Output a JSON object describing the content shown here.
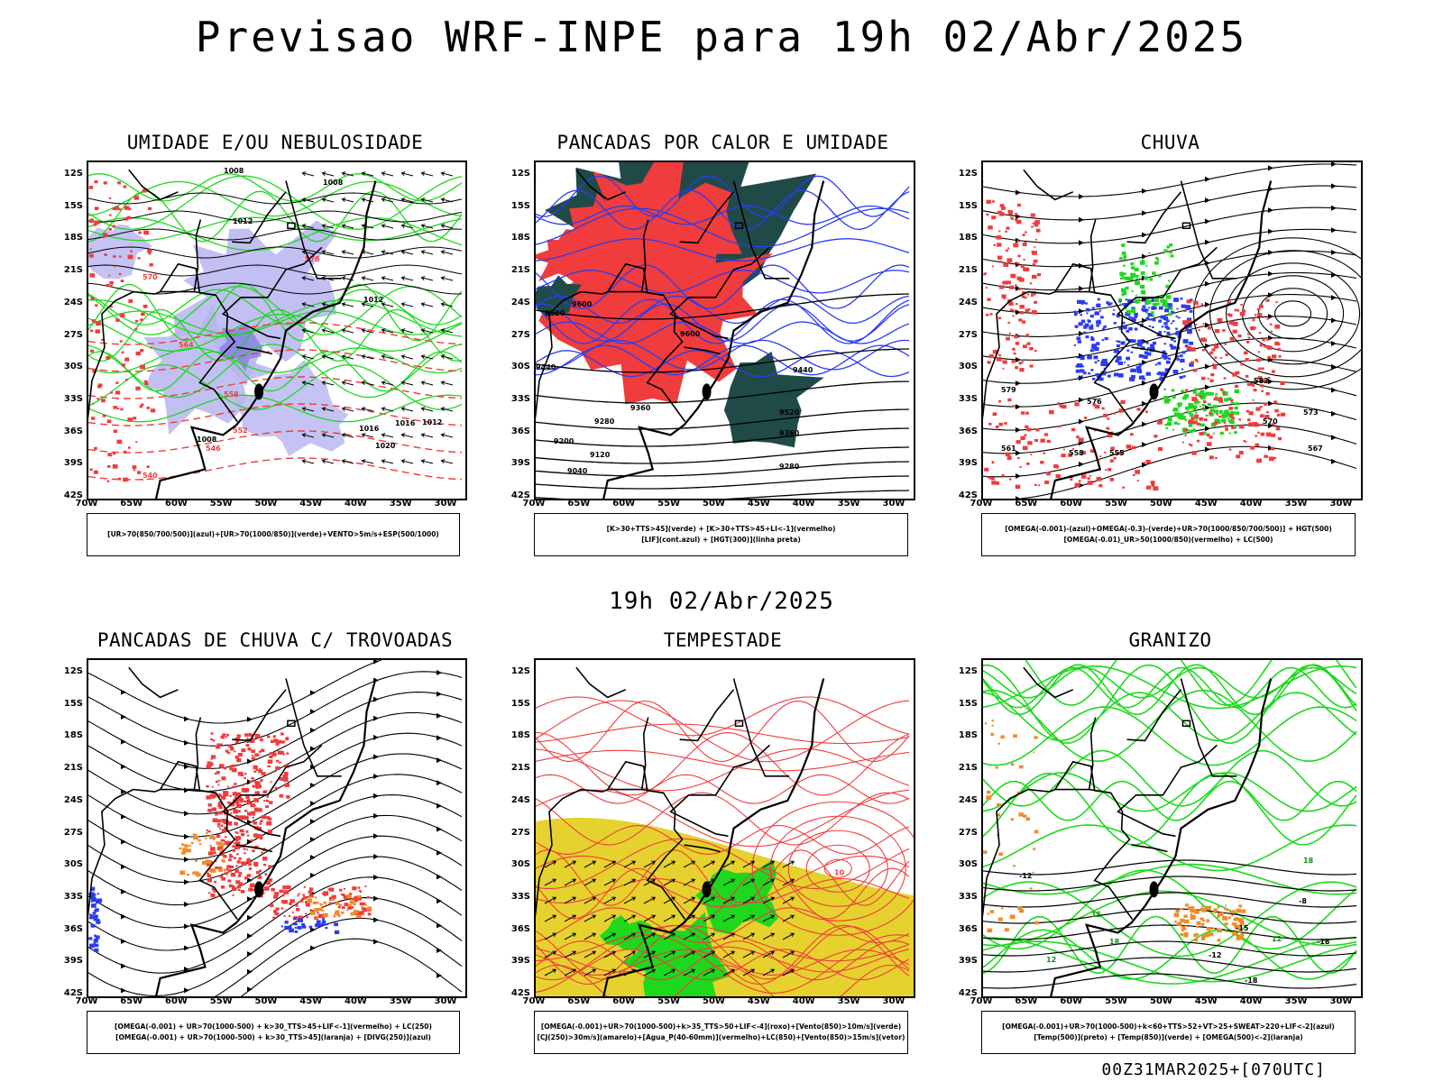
{
  "title": "Previsao WRF-INPE  para 19h 02/Abr/2025",
  "subtitle": "19h 02/Abr/2025",
  "footer": "00Z31MAR2025+[070UTC]",
  "axes": {
    "lat_labels": [
      "12S",
      "15S",
      "18S",
      "21S",
      "24S",
      "27S",
      "30S",
      "33S",
      "36S",
      "39S",
      "42S"
    ],
    "lon_labels": [
      "70W",
      "65W",
      "60W",
      "55W",
      "50W",
      "45W",
      "40W",
      "35W",
      "30W"
    ]
  },
  "colors": {
    "blue": "#2a3cf0",
    "green": "#1ed81e",
    "red": "#f03c3c",
    "dark_teal": "#1f4a48",
    "yellow": "#e6d22f",
    "orange": "#f08c28",
    "lavender": "#b7b4f0",
    "purple": "#a040d0"
  },
  "panels": [
    {
      "title": "UMIDADE E/OU NEBULOSIDADE",
      "legend": [
        "[UR>70(850/700/500)](azul)+[UR>70(1000/850)](verde)+VENTO>5m/s+ESP(500/1000)"
      ],
      "contour_labels": [
        "1008",
        "1008",
        "1012",
        "1012",
        "1012",
        "1016",
        "1016",
        "1008",
        "1020",
        "576",
        "570",
        "564",
        "558",
        "552",
        "546",
        "540"
      ]
    },
    {
      "title": "PANCADAS POR CALOR E UMIDADE",
      "legend": [
        "[K>30+TTS>45](verde) + [K>30+TTS>45+LI<-1](vermelho)",
        "[LIF](cont.azul) + [HGT(300)](linha preta)"
      ],
      "contour_labels": [
        "9600",
        "9520",
        "9440",
        "9360",
        "9280",
        "9200",
        "9120",
        "9040",
        "9600",
        "9440",
        "9360",
        "9280",
        "9520"
      ]
    },
    {
      "title": "CHUVA",
      "legend": [
        "[OMEGA(-0.001)-(azul)+OMEGA(-0.3)-(verde)+UR>70(1000/850/700/500)] + HGT(500)",
        "[OMEGA(-0.01)_UR>50(1000/850)(vermelho) + LC(500)"
      ],
      "contour_labels": [
        "582",
        "579",
        "576",
        "573",
        "570",
        "567",
        "561",
        "558",
        "555"
      ]
    },
    {
      "title": "PANCADAS DE CHUVA C/ TROVOADAS",
      "legend": [
        "[OMEGA(-0.001) + UR>70(1000-500) + k>30_TTS>45+LIF<-1](vermelho) + LC(250)",
        "[OMEGA(-0.001) + UR>70(1000-500) + k>30_TTS>45](laranja) + [DIVG(250)](azul)"
      ],
      "contour_labels": []
    },
    {
      "title": "TEMPESTADE",
      "legend": [
        "[OMEGA(-0.001)+UR>70(1000-500)+k>35_TTS>50+LIF<-4](roxo)+[Vento(850)>10m/s](verde)",
        "[CJ(250)>30m/s](amarelo)+[Agua_P(40-60mm)](vermelho)+LC(850)+[Vento(850)>15m/s](vetor)"
      ],
      "contour_labels": [
        "10"
      ]
    },
    {
      "title": "GRANIZO",
      "legend": [
        "[OMEGA(-0.001)+UR>70(1000-500)+k<60+TTS>52+VT>25+SWEAT>220+LIF<-2](azul)",
        "[Temp(500)](preto) + [Temp(850)](verde) + [OMEGA(500)<-2](laranja)"
      ],
      "contour_labels": [
        "-12",
        "-8",
        "12",
        "15",
        "18",
        "12",
        "18",
        "-15",
        "-18",
        "-18",
        "-12"
      ]
    }
  ]
}
